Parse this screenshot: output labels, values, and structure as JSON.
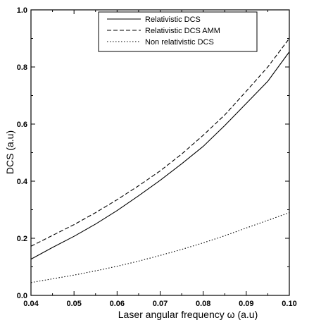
{
  "chart_data": {
    "type": "line",
    "title": "",
    "xlabel": "Laser angular frequency ω (a.u)",
    "ylabel": "DCS (a.u)",
    "xlim": [
      0.04,
      0.1
    ],
    "ylim": [
      0.0,
      1.0
    ],
    "x_ticks": [
      "0.04",
      "0.05",
      "0.06",
      "0.07",
      "0.08",
      "0.09",
      "0.10"
    ],
    "y_ticks": [
      "0.0",
      "0.2",
      "0.4",
      "0.6",
      "0.8",
      "1.0"
    ],
    "grid": false,
    "legend_position": "top-center",
    "x": [
      0.04,
      0.045,
      0.05,
      0.055,
      0.06,
      0.065,
      0.07,
      0.075,
      0.08,
      0.085,
      0.09,
      0.095,
      0.1
    ],
    "series": [
      {
        "name": "Relativistic DCS",
        "style": "solid",
        "values": [
          0.127,
          0.168,
          0.207,
          0.25,
          0.297,
          0.349,
          0.403,
          0.461,
          0.522,
          0.595,
          0.672,
          0.75,
          0.853
        ]
      },
      {
        "name": "Relativistic DCS AMM",
        "style": "dashed",
        "values": [
          0.172,
          0.21,
          0.248,
          0.29,
          0.335,
          0.384,
          0.436,
          0.495,
          0.561,
          0.632,
          0.715,
          0.8,
          0.9
        ]
      },
      {
        "name": "Non relativistic DCS",
        "style": "dotted",
        "values": [
          0.045,
          0.058,
          0.071,
          0.086,
          0.102,
          0.12,
          0.14,
          0.161,
          0.184,
          0.209,
          0.236,
          0.263,
          0.29
        ]
      }
    ]
  }
}
